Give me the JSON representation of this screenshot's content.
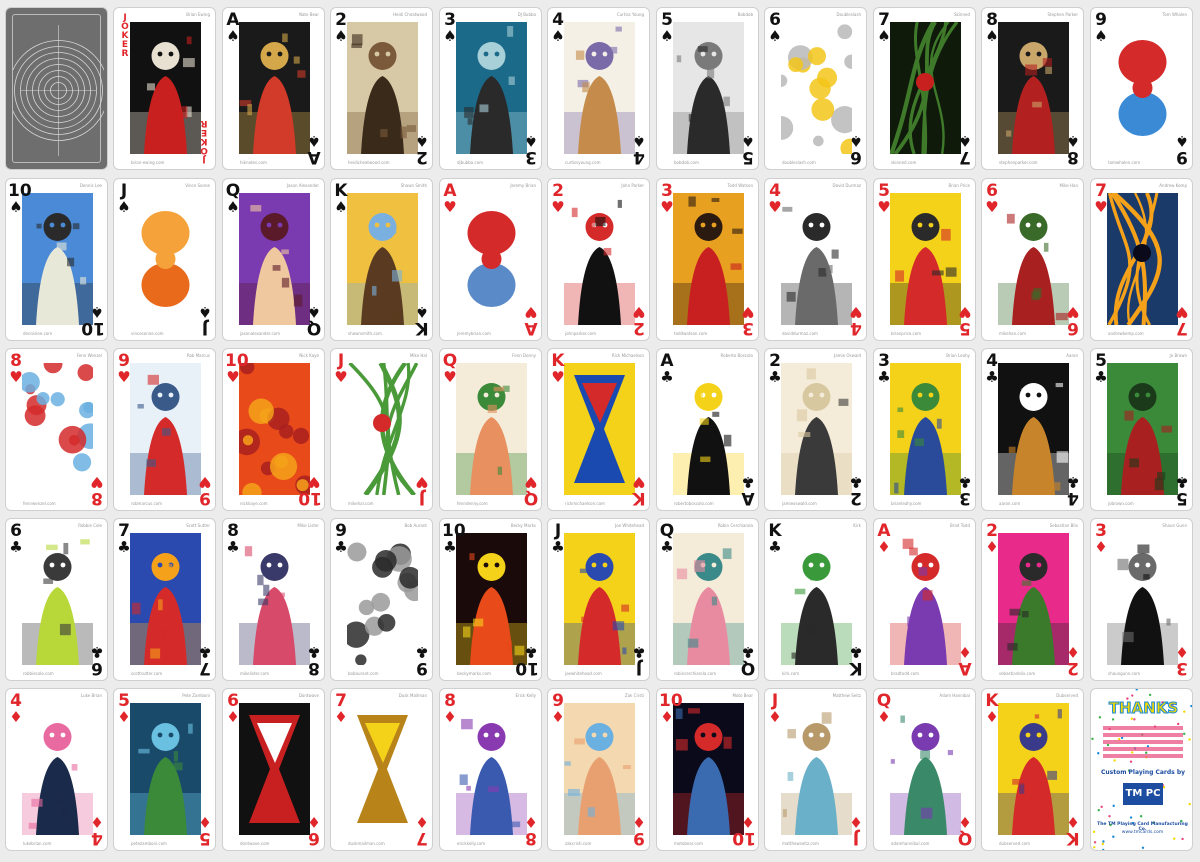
{
  "colors": {
    "red": "#e0262b",
    "black": "#111111",
    "sheet": "#ececec",
    "card": "#ffffff"
  },
  "cards": [
    {
      "type": "back"
    },
    {
      "type": "joker",
      "word": "JOKER",
      "artist": "Brian Ewing",
      "site": "brian-ewing.com",
      "palette": [
        "#111",
        "#c8201f",
        "#e8e0d0"
      ],
      "motif": "skull"
    },
    {
      "rank": "A",
      "suit": "spade",
      "artist": "Nate Bear",
      "site": "hiknates.com",
      "palette": [
        "#1a1a1a",
        "#d23a2a",
        "#d4a84a"
      ],
      "motif": "devil"
    },
    {
      "rank": "2",
      "suit": "spade",
      "artist": "Heidi Cheatwood",
      "site": "heidicheatwood.com",
      "palette": [
        "#d8c9a6",
        "#3a2a1a",
        "#7a5a3a"
      ],
      "motif": "portrait"
    },
    {
      "rank": "3",
      "suit": "spade",
      "artist": "DJ Bubba",
      "site": "djbubba.com",
      "palette": [
        "#1b6a8a",
        "#2a2a2a",
        "#a8d0d8"
      ],
      "motif": "tower"
    },
    {
      "rank": "4",
      "suit": "spade",
      "artist": "Curtiss Young",
      "site": "curtissyoung.com",
      "palette": [
        "#f4f0e6",
        "#c58b4a",
        "#7a6aa8"
      ],
      "motif": "geisha"
    },
    {
      "rank": "5",
      "suit": "spade",
      "artist": "Bobdob",
      "site": "bobdob.com",
      "palette": [
        "#e6e6e6",
        "#2a2a2a",
        "#7a7a7a"
      ],
      "motif": "ghost"
    },
    {
      "rank": "6",
      "suit": "spade",
      "artist": "Doubleslash",
      "site": "doubleslash.com",
      "palette": [
        "#ffffff",
        "#f3c51a",
        "#b8b8b8"
      ],
      "motif": "bubbles"
    },
    {
      "rank": "7",
      "suit": "spade",
      "artist": "Skinned",
      "site": "skinned.com",
      "palette": [
        "#0f1a0a",
        "#3f7a2a",
        "#c8201f"
      ],
      "motif": "vines"
    },
    {
      "rank": "8",
      "suit": "spade",
      "artist": "Stephen Parker",
      "site": "stephenparker.com",
      "palette": [
        "#1a1a1a",
        "#b32020",
        "#c9a66a"
      ],
      "motif": "cats"
    },
    {
      "rank": "9",
      "suit": "spade",
      "artist": "Tom Whalen",
      "site": "tomwhalen.com",
      "palette": [
        "#ffffff",
        "#d42a2a",
        "#3a8ad6"
      ],
      "motif": "totem"
    },
    {
      "rank": "10",
      "suit": "spade",
      "artist": "Dennis Lee",
      "site": "dennislee.com",
      "palette": [
        "#4a8ad6",
        "#e8e8d8",
        "#2a2a2a"
      ],
      "motif": "house"
    },
    {
      "rank": "J",
      "suit": "spade",
      "artist": "Vince Sonne",
      "site": "vincesonne.com",
      "palette": [
        "#ffffff",
        "#f5a23a",
        "#e86a1a"
      ],
      "motif": "flame"
    },
    {
      "rank": "Q",
      "suit": "spade",
      "artist": "Jason Alexander",
      "site": "jasonalexander.com",
      "palette": [
        "#7a3ab0",
        "#f0c8a0",
        "#5a1a2a"
      ],
      "motif": "pinup"
    },
    {
      "rank": "K",
      "suit": "spade",
      "artist": "Shawn Smith",
      "site": "shawnsmith.com",
      "palette": [
        "#f0c040",
        "#5a3a20",
        "#7ab0e0"
      ],
      "motif": "bigfoot"
    },
    {
      "rank": "A",
      "suit": "heart",
      "artist": "Jeremy Brian",
      "site": "jeremybrian.com",
      "palette": [
        "#ffffff",
        "#d42a2a",
        "#5a8ac8"
      ],
      "motif": "sacred-heart"
    },
    {
      "rank": "2",
      "suit": "heart",
      "artist": "John Parker",
      "site": "johnparker.com",
      "palette": [
        "#ffffff",
        "#111111",
        "#d42a2a"
      ],
      "motif": "horse"
    },
    {
      "rank": "3",
      "suit": "heart",
      "artist": "Todd Watson",
      "site": "toddwatson.com",
      "palette": [
        "#e8a020",
        "#c82020",
        "#2a1a10"
      ],
      "motif": "face"
    },
    {
      "rank": "4",
      "suit": "heart",
      "artist": "David Durmaz",
      "site": "daviddurmaz.com",
      "palette": [
        "#ffffff",
        "#6a6a6a",
        "#2a2a2a"
      ],
      "motif": "rat"
    },
    {
      "rank": "5",
      "suit": "heart",
      "artist": "Brian Price",
      "site": "brianprice.com",
      "palette": [
        "#f5d21a",
        "#d42a2a",
        "#2a2a2a"
      ],
      "motif": "whack"
    },
    {
      "rank": "6",
      "suit": "heart",
      "artist": "Mike Han",
      "site": "mikehan.com",
      "palette": [
        "#ffffff",
        "#a82020",
        "#3a6a2a"
      ],
      "motif": "creature"
    },
    {
      "rank": "7",
      "suit": "heart",
      "artist": "Andrew Kemp",
      "site": "andrewkemp.com",
      "palette": [
        "#1a3a6a",
        "#f5a21a",
        "#0a0a1a"
      ],
      "motif": "city"
    },
    {
      "rank": "8",
      "suit": "heart",
      "artist": "Fenn Wenzel",
      "site": "fennwenzel.com",
      "palette": [
        "#ffffff",
        "#6ab0e0",
        "#d42a2a"
      ],
      "motif": "lips"
    },
    {
      "rank": "9",
      "suit": "heart",
      "artist": "Rob Marcus",
      "site": "robmarcus.com",
      "palette": [
        "#e8f0f8",
        "#d42a2a",
        "#3a5a8a"
      ],
      "motif": "cowgirl"
    },
    {
      "rank": "10",
      "suit": "heart",
      "artist": "Nick Kaye",
      "site": "nickkaye.com",
      "palette": [
        "#e84a1a",
        "#f5a21a",
        "#a82020"
      ],
      "motif": "hearts"
    },
    {
      "rank": "J",
      "suit": "heart",
      "artist": "Mike Hal",
      "site": "mikehal.com",
      "palette": [
        "#ffffff",
        "#4a9a3a",
        "#d42a2a"
      ],
      "motif": "beanstalk"
    },
    {
      "rank": "Q",
      "suit": "heart",
      "artist": "Fenn Denny",
      "site": "fenndenny.com",
      "palette": [
        "#f4ecd8",
        "#e89060",
        "#3a8a3a"
      ],
      "motif": "venus"
    },
    {
      "rank": "K",
      "suit": "heart",
      "artist": "Rick Michaelson",
      "site": "rickmichaelson.com",
      "palette": [
        "#f5d21a",
        "#1a4ab0",
        "#d42a2a"
      ],
      "motif": "hourglass"
    },
    {
      "rank": "A",
      "suit": "club",
      "artist": "Roberto Boscolo",
      "site": "robertoboscolo.com",
      "palette": [
        "#ffffff",
        "#111111",
        "#f5d21a"
      ],
      "motif": "bug"
    },
    {
      "rank": "2",
      "suit": "club",
      "artist": "Jamie Oswald",
      "site": "jamieoswald.com",
      "palette": [
        "#f4ecd8",
        "#3a3a3a",
        "#d8c8a0"
      ],
      "motif": "woman"
    },
    {
      "rank": "3",
      "suit": "club",
      "artist": "Brian Leahy",
      "site": "brianleahy.com",
      "palette": [
        "#f5d21a",
        "#2a4a9a",
        "#3a8a3a"
      ],
      "motif": "batter"
    },
    {
      "rank": "4",
      "suit": "club",
      "artist": "Aaron",
      "site": "aaron.com",
      "palette": [
        "#111111",
        "#c8842a",
        "#ffffff"
      ],
      "motif": "fighters"
    },
    {
      "rank": "5",
      "suit": "club",
      "artist": "Jo Brown",
      "site": "jobrown.com",
      "palette": [
        "#3a8a3a",
        "#a82020",
        "#1a3a1a"
      ],
      "motif": "door"
    },
    {
      "rank": "6",
      "suit": "club",
      "artist": "Robbie Cole",
      "site": "robbiecole.com",
      "palette": [
        "#ffffff",
        "#b8d83a",
        "#3a3a3a"
      ],
      "motif": "monster"
    },
    {
      "rank": "7",
      "suit": "club",
      "artist": "Scott Sutter",
      "site": "scottsutter.com",
      "palette": [
        "#2a4ab0",
        "#d42a2a",
        "#f5a21a"
      ],
      "motif": "robot"
    },
    {
      "rank": "8",
      "suit": "club",
      "artist": "Mike Lister",
      "site": "mikelister.com",
      "palette": [
        "#ffffff",
        "#d84a6a",
        "#3a3a6a"
      ],
      "motif": "centipede"
    },
    {
      "rank": "9",
      "suit": "club",
      "artist": "Bob Aurant",
      "site": "bobaurant.com",
      "palette": [
        "#ffffff",
        "#2a2a2a",
        "#9a9a9a"
      ],
      "motif": "skulls"
    },
    {
      "rank": "10",
      "suit": "club",
      "artist": "Becky Marks",
      "site": "beckymarks.com",
      "palette": [
        "#1a0a0a",
        "#e84a1a",
        "#f5d21a"
      ],
      "motif": "poster"
    },
    {
      "rank": "J",
      "suit": "club",
      "artist": "Joe Whitehead",
      "site": "joewhitehead.com",
      "palette": [
        "#f5d21a",
        "#d42a2a",
        "#2a4ab0"
      ],
      "motif": "doctor"
    },
    {
      "rank": "Q",
      "suit": "club",
      "artist": "Robin Cerchiarola",
      "site": "robincerchiarola.com",
      "palette": [
        "#f4ecd8",
        "#e88aa0",
        "#3a8a8a"
      ],
      "motif": "lady"
    },
    {
      "rank": "K",
      "suit": "club",
      "artist": "Kirk",
      "site": "kirk.com",
      "palette": [
        "#ffffff",
        "#2a2a2a",
        "#3a9a3a"
      ],
      "motif": "king-clubs"
    },
    {
      "rank": "A",
      "suit": "diamond",
      "artist": "Brad Todd",
      "site": "bradtodd.com",
      "palette": [
        "#ffffff",
        "#7a3ab0",
        "#d42a2a"
      ],
      "motif": "hat"
    },
    {
      "rank": "2",
      "suit": "diamond",
      "artist": "Sebastian Blix",
      "site": "sebastianblix.com",
      "palette": [
        "#e82a8a",
        "#3a7a2a",
        "#2a2a2a"
      ],
      "motif": "soldier"
    },
    {
      "rank": "3",
      "suit": "diamond",
      "artist": "Shaun Gunn",
      "site": "shaungunn.com",
      "palette": [
        "#ffffff",
        "#111111",
        "#6a6a6a"
      ],
      "motif": "silent-star"
    },
    {
      "rank": "4",
      "suit": "diamond",
      "artist": "Luke Brian",
      "site": "lukebrian.com",
      "palette": [
        "#ffffff",
        "#1a2a4a",
        "#e86aa0"
      ],
      "motif": "nesting"
    },
    {
      "rank": "5",
      "suit": "diamond",
      "artist": "Pete Zamboni",
      "site": "petezamboni.com",
      "palette": [
        "#1a4a6a",
        "#3a8a3a",
        "#6ac0e0"
      ],
      "motif": "woman-blue"
    },
    {
      "rank": "6",
      "suit": "diamond",
      "artist": "Dontwave",
      "site": "dontwave.com",
      "palette": [
        "#111111",
        "#c82020",
        "#ffffff"
      ],
      "motif": "gears"
    },
    {
      "rank": "7",
      "suit": "diamond",
      "artist": "Dusk Mailman",
      "site": "duskmailman.com",
      "palette": [
        "#ffffff",
        "#b8841a",
        "#f5d21a"
      ],
      "motif": "seven"
    },
    {
      "rank": "8",
      "suit": "diamond",
      "artist": "Erick Kelly",
      "site": "erickkelly.com",
      "palette": [
        "#ffffff",
        "#3a5ab0",
        "#8a3ab0"
      ],
      "motif": "bird"
    },
    {
      "rank": "9",
      "suit": "diamond",
      "artist": "Zak Cristi",
      "site": "zakcristi.com",
      "palette": [
        "#f4d8b0",
        "#e8a070",
        "#6ab0e0"
      ],
      "motif": "figures"
    },
    {
      "rank": "10",
      "suit": "diamond",
      "artist": "Moto Bear",
      "site": "motobear.com",
      "palette": [
        "#0a0a1a",
        "#3a6ab0",
        "#d42a2a"
      ],
      "motif": "van"
    },
    {
      "rank": "J",
      "suit": "diamond",
      "artist": "Matthew Seitz",
      "site": "matthewseitz.com",
      "palette": [
        "#ffffff",
        "#6ab0c8",
        "#b89a6a"
      ],
      "motif": "knight"
    },
    {
      "rank": "Q",
      "suit": "diamond",
      "artist": "Adam Hannibal",
      "site": "adamhannibal.com",
      "palette": [
        "#ffffff",
        "#3a8a6a",
        "#7a3ab0"
      ],
      "motif": "queen"
    },
    {
      "rank": "K",
      "suit": "diamond",
      "artist": "Dubserved",
      "site": "dubserved.com",
      "palette": [
        "#f5d21a",
        "#d42a2a",
        "#3a3a8a"
      ],
      "motif": "throne"
    },
    {
      "type": "thanks",
      "title": "THANKS",
      "caption": "Custom Playing Cards by",
      "logo": "TM PC",
      "footer": "The TM Playing Card Manufacturing Co.",
      "site": "www.tmcards.com"
    }
  ]
}
